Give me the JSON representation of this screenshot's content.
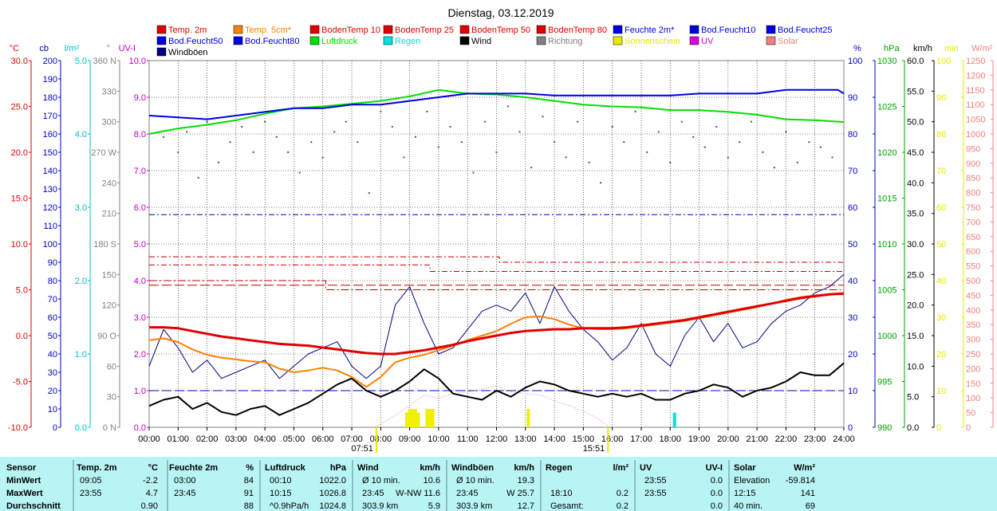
{
  "chart_data": {
    "type": "line",
    "title": "Dienstag, 03.12.2019",
    "legend_placement": "top",
    "legend": [
      {
        "name": "Temp. 2m",
        "color": "#e00000"
      },
      {
        "name": "Temp. 5cm*",
        "color": "#ff8000"
      },
      {
        "name": "BodenTemp 10",
        "color": "#e00000"
      },
      {
        "name": "BodenTemp 25",
        "color": "#e00000"
      },
      {
        "name": "BodenTemp 50",
        "color": "#e00000"
      },
      {
        "name": "BodenTemp 80",
        "color": "#e00000"
      },
      {
        "name": "Feuchte 2m*",
        "color": "#0000e0"
      },
      {
        "name": "Bod.Feucht10",
        "color": "#0000e0"
      },
      {
        "name": "Bod.Feucht25",
        "color": "#0000e0"
      },
      {
        "name": "Bod.Feucht50",
        "color": "#0000e0"
      },
      {
        "name": "Bod.Feucht80",
        "color": "#0000e0"
      },
      {
        "name": "Luftdruck",
        "color": "#00e000"
      },
      {
        "name": "Regen",
        "color": "#00e0e0"
      },
      {
        "name": "Wind",
        "color": "#000000"
      },
      {
        "name": "Richtung",
        "color": "#808080"
      },
      {
        "name": "Sonnenschein",
        "color": "#e8e800"
      },
      {
        "name": "UV",
        "color": "#e000e0"
      },
      {
        "name": "Solar",
        "color": "#f08080"
      },
      {
        "name": "Windböen",
        "color": "#000080"
      }
    ],
    "x_ticks": [
      "00:00",
      "01:00",
      "02:00",
      "03:00",
      "04:00",
      "05:00",
      "06:00",
      "07:00",
      "08:00",
      "09:00",
      "10:00",
      "11:00",
      "12:00",
      "13:00",
      "14:00",
      "15:00",
      "16:00",
      "17:00",
      "18:00",
      "19:00",
      "20:00",
      "21:00",
      "22:00",
      "23:00",
      "24:00"
    ],
    "x_range": [
      0,
      24
    ],
    "sunrise_label": "07:51",
    "sunset_label": "15:51",
    "axes": [
      {
        "label": "°C",
        "color": "#e00000",
        "ticks": [
          "30.0",
          "25.0",
          "20.0",
          "15.0",
          "10.0",
          "5.0",
          "0.0",
          "-5.0",
          "-10.0"
        ],
        "range": [
          -10,
          30
        ]
      },
      {
        "label": "cb",
        "color": "#0000c0",
        "ticks": [
          "200",
          "190",
          "180",
          "170",
          "160",
          "150",
          "140",
          "130",
          "120",
          "110",
          "100",
          "90",
          "80",
          "70",
          "60",
          "50",
          "40",
          "30",
          "20",
          "10",
          "0"
        ],
        "range": [
          0,
          200
        ]
      },
      {
        "label": "l/m²",
        "color": "#00c0c0",
        "ticks": [
          "5.0",
          "4.0",
          "3.0",
          "2.0",
          "1.0",
          "0.0"
        ],
        "range": [
          0,
          5
        ]
      },
      {
        "label": "°",
        "color": "#808080",
        "ticks": [
          "360 N",
          "330",
          "300",
          "270 W",
          "240",
          "210",
          "180 S",
          "150",
          "120",
          "90 O",
          "60",
          "30",
          "0 N"
        ],
        "range": [
          0,
          360
        ]
      },
      {
        "label": "UV-I",
        "color": "#c000c0",
        "ticks": [
          "10.0",
          "9.0",
          "8.0",
          "7.0",
          "6.0",
          "5.0",
          "4.0",
          "3.0",
          "2.0",
          "1.0",
          "0.0"
        ],
        "range": [
          0,
          10
        ]
      },
      {
        "label": "%",
        "color": "#0000c0",
        "ticks": [
          "100",
          "90",
          "80",
          "70",
          "60",
          "50",
          "40",
          "30",
          "20",
          "10",
          "0"
        ],
        "range": [
          0,
          100
        ]
      },
      {
        "label": "hPa",
        "color": "#00a000",
        "ticks": [
          "1030",
          "1025",
          "1020",
          "1015",
          "1010",
          "1005",
          "1000",
          "995",
          "990"
        ],
        "range": [
          990,
          1030
        ]
      },
      {
        "label": "km/h",
        "color": "#000000",
        "ticks": [
          "60.0",
          "55.0",
          "50.0",
          "45.0",
          "40.0",
          "35.0",
          "30.0",
          "25.0",
          "20.0",
          "15.0",
          "10.0",
          "5.0",
          "0.0"
        ],
        "range": [
          0,
          60
        ]
      },
      {
        "label": "min",
        "color": "#e8e800",
        "ticks": [
          "100",
          "90",
          "80",
          "70",
          "60",
          "50",
          "40",
          "30",
          "20",
          "10",
          "0"
        ],
        "range": [
          0,
          100
        ]
      },
      {
        "label": "W/m²",
        "color": "#f08080",
        "ticks": [
          "1250",
          "1200",
          "1150",
          "1100",
          "1050",
          "1000",
          "950",
          "900",
          "850",
          "800",
          "750",
          "700",
          "650",
          "600",
          "550",
          "500",
          "450",
          "400",
          "350",
          "300",
          "250",
          "200",
          "150",
          "100",
          "50",
          "0"
        ],
        "range": [
          0,
          1250
        ]
      }
    ],
    "series": [
      {
        "name": "Temp. 2m",
        "unit": "°C",
        "x": [
          0,
          0.5,
          1,
          1.5,
          2,
          2.5,
          3,
          3.5,
          4,
          4.5,
          5,
          5.5,
          6,
          6.5,
          7,
          7.5,
          8,
          8.5,
          9,
          9.5,
          10,
          10.5,
          11,
          11.5,
          12,
          12.5,
          13,
          13.5,
          14,
          14.5,
          15,
          15.5,
          16,
          16.5,
          17,
          17.5,
          18,
          18.5,
          19,
          19.5,
          20,
          20.5,
          21,
          21.5,
          22,
          22.5,
          23,
          23.5,
          24
        ],
        "y": [
          0.9,
          0.9,
          0.8,
          0.5,
          0.2,
          -0.1,
          -0.3,
          -0.5,
          -0.7,
          -0.9,
          -1.0,
          -1.1,
          -1.3,
          -1.5,
          -1.7,
          -1.9,
          -2.0,
          -2.0,
          -1.8,
          -1.6,
          -1.3,
          -1.0,
          -0.6,
          -0.3,
          0.0,
          0.3,
          0.5,
          0.6,
          0.7,
          0.7,
          0.8,
          0.8,
          0.8,
          0.9,
          1.1,
          1.3,
          1.5,
          1.7,
          2.0,
          2.3,
          2.6,
          2.9,
          3.2,
          3.5,
          3.8,
          4.1,
          4.3,
          4.5,
          4.6
        ]
      },
      {
        "name": "Temp. 5cm*",
        "unit": "°C",
        "x": [
          0,
          0.5,
          1,
          1.5,
          2,
          2.5,
          3,
          3.5,
          4,
          4.5,
          5,
          5.5,
          6,
          6.5,
          7,
          7.5,
          8,
          8.5,
          9,
          9.5,
          10,
          10.5,
          11,
          11.5,
          12,
          12.5,
          13,
          13.5,
          14,
          14.5,
          15,
          15.5,
          16,
          16.5,
          17,
          17.5,
          18,
          18.5,
          19,
          19.5,
          20,
          20.5,
          21,
          21.5,
          22,
          22.5,
          23,
          23.5,
          24
        ],
        "y": [
          -0.5,
          -0.3,
          -0.7,
          -1.5,
          -2.1,
          -2.4,
          -2.6,
          -2.8,
          -2.9,
          -3.6,
          -4.0,
          -3.8,
          -3.5,
          -3.8,
          -4.5,
          -5.6,
          -4.5,
          -2.9,
          -2.4,
          -2.1,
          -1.6,
          -1.1,
          -0.5,
          0.0,
          0.5,
          1.3,
          2.0,
          2.1,
          1.8,
          1.2,
          0.8,
          0.7,
          0.7,
          0.8,
          1.0,
          1.2,
          1.4,
          1.6,
          1.9,
          2.2,
          2.5,
          2.8,
          3.1,
          3.5,
          3.9,
          4.2,
          4.4,
          4.5,
          4.5
        ]
      },
      {
        "name": "BodenTemp 10",
        "unit": "°C",
        "x": [
          0,
          24
        ],
        "y": [
          5.5,
          5.5
        ],
        "dash": "long"
      },
      {
        "name": "BodenTemp 25",
        "unit": "°C",
        "x": [
          0,
          6.1,
          6.1,
          24
        ],
        "y": [
          6.0,
          6.0,
          5.0,
          5.0
        ],
        "dash": "longdot"
      },
      {
        "name": "BodenTemp 50",
        "unit": "°C",
        "x": [
          0,
          9.7,
          9.7,
          24
        ],
        "y": [
          7.7,
          7.7,
          7.0,
          7.0
        ],
        "dash": "dashdot"
      },
      {
        "name": "BodenTemp 80",
        "unit": "°C",
        "x": [
          0,
          12.1,
          12.1,
          24
        ],
        "y": [
          8.6,
          8.6,
          8.0,
          8.0
        ],
        "dash": "dashdot"
      },
      {
        "name": "Feuchte 2m*",
        "unit": "%",
        "x": [
          0,
          2,
          3,
          4,
          5,
          6,
          7,
          8,
          9,
          10,
          11,
          12,
          13,
          14,
          15,
          16,
          17,
          18,
          19,
          20,
          21,
          22,
          23,
          23.8,
          24
        ],
        "y": [
          85,
          84,
          85,
          86,
          87,
          87,
          88,
          88,
          89,
          90,
          91,
          91,
          91,
          90.5,
          90.5,
          90.5,
          90.5,
          90.5,
          91,
          91,
          91,
          92,
          92,
          92,
          91
        ],
        "dash": "solid"
      },
      {
        "name": "Bod.Feucht50",
        "unit": "%",
        "x": [
          0,
          24
        ],
        "y": [
          58,
          58
        ],
        "dash": "dashdot"
      },
      {
        "name": "Bod.Feucht80",
        "unit": "%",
        "x": [
          0,
          24
        ],
        "y": [
          10,
          10
        ],
        "dash": "long"
      },
      {
        "name": "Luftdruck",
        "unit": "hPa",
        "x": [
          0,
          1,
          2,
          3,
          4,
          5,
          6,
          7,
          8,
          9,
          10,
          11,
          12,
          13,
          14,
          15,
          16,
          17,
          18,
          19,
          20,
          21,
          22,
          23,
          24
        ],
        "y": [
          1022.0,
          1022.6,
          1023.0,
          1023.5,
          1024.2,
          1024.8,
          1025.0,
          1025.3,
          1025.6,
          1026.1,
          1026.8,
          1026.4,
          1026.3,
          1026.0,
          1025.6,
          1025.2,
          1025.0,
          1024.9,
          1024.6,
          1024.6,
          1024.4,
          1024.1,
          1023.6,
          1023.5,
          1023.3
        ]
      },
      {
        "name": "Wind",
        "unit": "km/h",
        "x": [
          0,
          0.5,
          1,
          1.5,
          2,
          2.5,
          3,
          3.5,
          4,
          4.5,
          5,
          5.5,
          6,
          6.5,
          7,
          7.5,
          8,
          8.5,
          9,
          9.5,
          10,
          10.5,
          11,
          11.5,
          12,
          12.5,
          13,
          13.5,
          14,
          14.5,
          15,
          15.5,
          16,
          16.5,
          17,
          17.5,
          18,
          18.5,
          19,
          19.5,
          20,
          20.5,
          21,
          21.5,
          22,
          22.5,
          23,
          23.5,
          24
        ],
        "y": [
          3.5,
          4.5,
          5.0,
          3.0,
          4.0,
          2.5,
          2.0,
          3.0,
          3.5,
          2.0,
          3.0,
          4.0,
          5.5,
          7.0,
          8.0,
          6.0,
          5.0,
          6.0,
          7.5,
          9.5,
          8.0,
          5.5,
          5.0,
          4.5,
          6.0,
          5.0,
          6.5,
          7.5,
          7.0,
          6.0,
          5.5,
          5.0,
          5.5,
          5.0,
          5.5,
          4.5,
          4.5,
          5.5,
          6.0,
          7.0,
          6.5,
          5.0,
          6.0,
          6.5,
          7.5,
          9.0,
          8.5,
          8.5,
          10.5
        ]
      },
      {
        "name": "Windböen",
        "unit": "km/h",
        "x": [
          0,
          0.5,
          1,
          1.5,
          2,
          2.5,
          3,
          3.5,
          4,
          4.5,
          5,
          5.5,
          6,
          6.5,
          7,
          7.5,
          8,
          8.5,
          9,
          9.5,
          10,
          10.5,
          11,
          11.5,
          12,
          12.5,
          13,
          13.5,
          14,
          14.5,
          15,
          15.5,
          16,
          16.5,
          17,
          17.5,
          18,
          18.5,
          19,
          19.5,
          20,
          20.5,
          21,
          21.5,
          22,
          22.5,
          23,
          23.5,
          24
        ],
        "y": [
          10,
          16,
          13,
          9,
          11,
          8,
          9,
          10,
          11,
          8,
          10,
          12,
          13,
          14,
          10,
          8,
          10,
          20,
          23,
          17,
          12,
          13,
          16,
          19,
          20,
          19,
          22,
          17,
          23,
          19,
          16,
          14,
          11,
          13,
          17,
          12,
          10,
          15,
          18,
          14,
          17,
          13,
          14,
          17,
          19,
          20,
          22,
          23,
          25
        ]
      },
      {
        "name": "Richtung",
        "unit": "°",
        "style": "dots",
        "x": [
          0.5,
          1,
          1.3,
          1.7,
          2,
          2.4,
          2.8,
          3.2,
          3.6,
          4,
          4.4,
          4.8,
          5.2,
          5.6,
          6,
          6.4,
          6.8,
          7.2,
          7.6,
          8,
          8.4,
          8.8,
          9.2,
          9.6,
          10,
          10.4,
          10.8,
          11.2,
          11.6,
          12,
          12.4,
          12.8,
          13.2,
          13.6,
          14,
          14.4,
          14.8,
          15.2,
          15.6,
          16,
          16.4,
          16.8,
          17.2,
          17.6,
          18,
          18.4,
          18.8,
          19.2,
          19.6,
          20,
          20.4,
          20.8,
          21.2,
          21.6,
          22,
          22.4,
          22.8,
          23.2,
          23.6
        ],
        "y": [
          285,
          270,
          290,
          245,
          300,
          260,
          280,
          295,
          270,
          300,
          285,
          270,
          250,
          280,
          265,
          290,
          300,
          280,
          230,
          310,
          295,
          265,
          285,
          310,
          275,
          295,
          280,
          250,
          300,
          270,
          315,
          290,
          255,
          305,
          280,
          265,
          300,
          260,
          240,
          295,
          280,
          310,
          270,
          290,
          260,
          300,
          285,
          275,
          295,
          265,
          280,
          300,
          270,
          255,
          290,
          260,
          280,
          275,
          265
        ]
      },
      {
        "name": "Solar",
        "unit": "W/m²",
        "style": "dotted",
        "x": [
          7.8,
          8.5,
          9.0,
          9.5,
          10.0,
          10.5,
          11.0,
          11.5,
          12.0,
          12.5,
          13.0,
          13.5,
          14.0,
          14.5,
          15.0,
          15.5,
          15.9
        ],
        "y": [
          0,
          40,
          75,
          110,
          100,
          115,
          120,
          130,
          141,
          120,
          115,
          110,
          90,
          75,
          55,
          30,
          0
        ]
      },
      {
        "name": "Sonnenschein",
        "unit": "min",
        "style": "bars",
        "x": [
          8.9,
          9.0,
          9.1,
          9.2,
          9.3,
          9.6,
          9.7,
          9.8,
          13.1
        ],
        "y": [
          4,
          5,
          5,
          5,
          4,
          5,
          5,
          5,
          5
        ]
      },
      {
        "name": "Regen",
        "unit": "l/m²",
        "style": "bars",
        "x": [
          18.15
        ],
        "y": [
          0.2
        ]
      }
    ]
  },
  "stats": {
    "headers": [
      "Sensor",
      "Temp. 2m",
      "°C",
      "Feuchte 2m",
      "%",
      "Luftdruck",
      "hPa",
      "Wind",
      "km/h",
      "Windböen",
      "km/h",
      "Regen",
      "l/m²",
      "UV",
      "UV-I",
      "Solar",
      "W/m²"
    ],
    "rows": [
      {
        "label": "MinWert",
        "cells": [
          "09:05",
          "-2.2",
          "03:00",
          "84",
          "00:10",
          "1022.0",
          "Ø 10 min.",
          "10.6",
          "Ø 10 min.",
          "19.3",
          "",
          "",
          "23:55",
          "0.0",
          "Elevation",
          "-59.814"
        ]
      },
      {
        "label": "MaxWert",
        "cells": [
          "23:55",
          "4.7",
          "23:45",
          "91",
          "10:15",
          "1026.8",
          "23:45",
          "W-NW 11.6",
          "23:45",
          "W 25.7",
          "18:10",
          "0.2",
          "23:55",
          "0.0",
          "12:15",
          "141"
        ]
      },
      {
        "label": "Durchschnitt",
        "cells": [
          "",
          "0.90",
          "",
          "88",
          "^0.9hPa/h",
          "1024.8",
          "303.9 km",
          "5.9",
          "303.9 km",
          "12.7",
          "Gesamt:",
          "0.2",
          "",
          "0.0",
          "40 min.",
          "69"
        ]
      }
    ]
  }
}
